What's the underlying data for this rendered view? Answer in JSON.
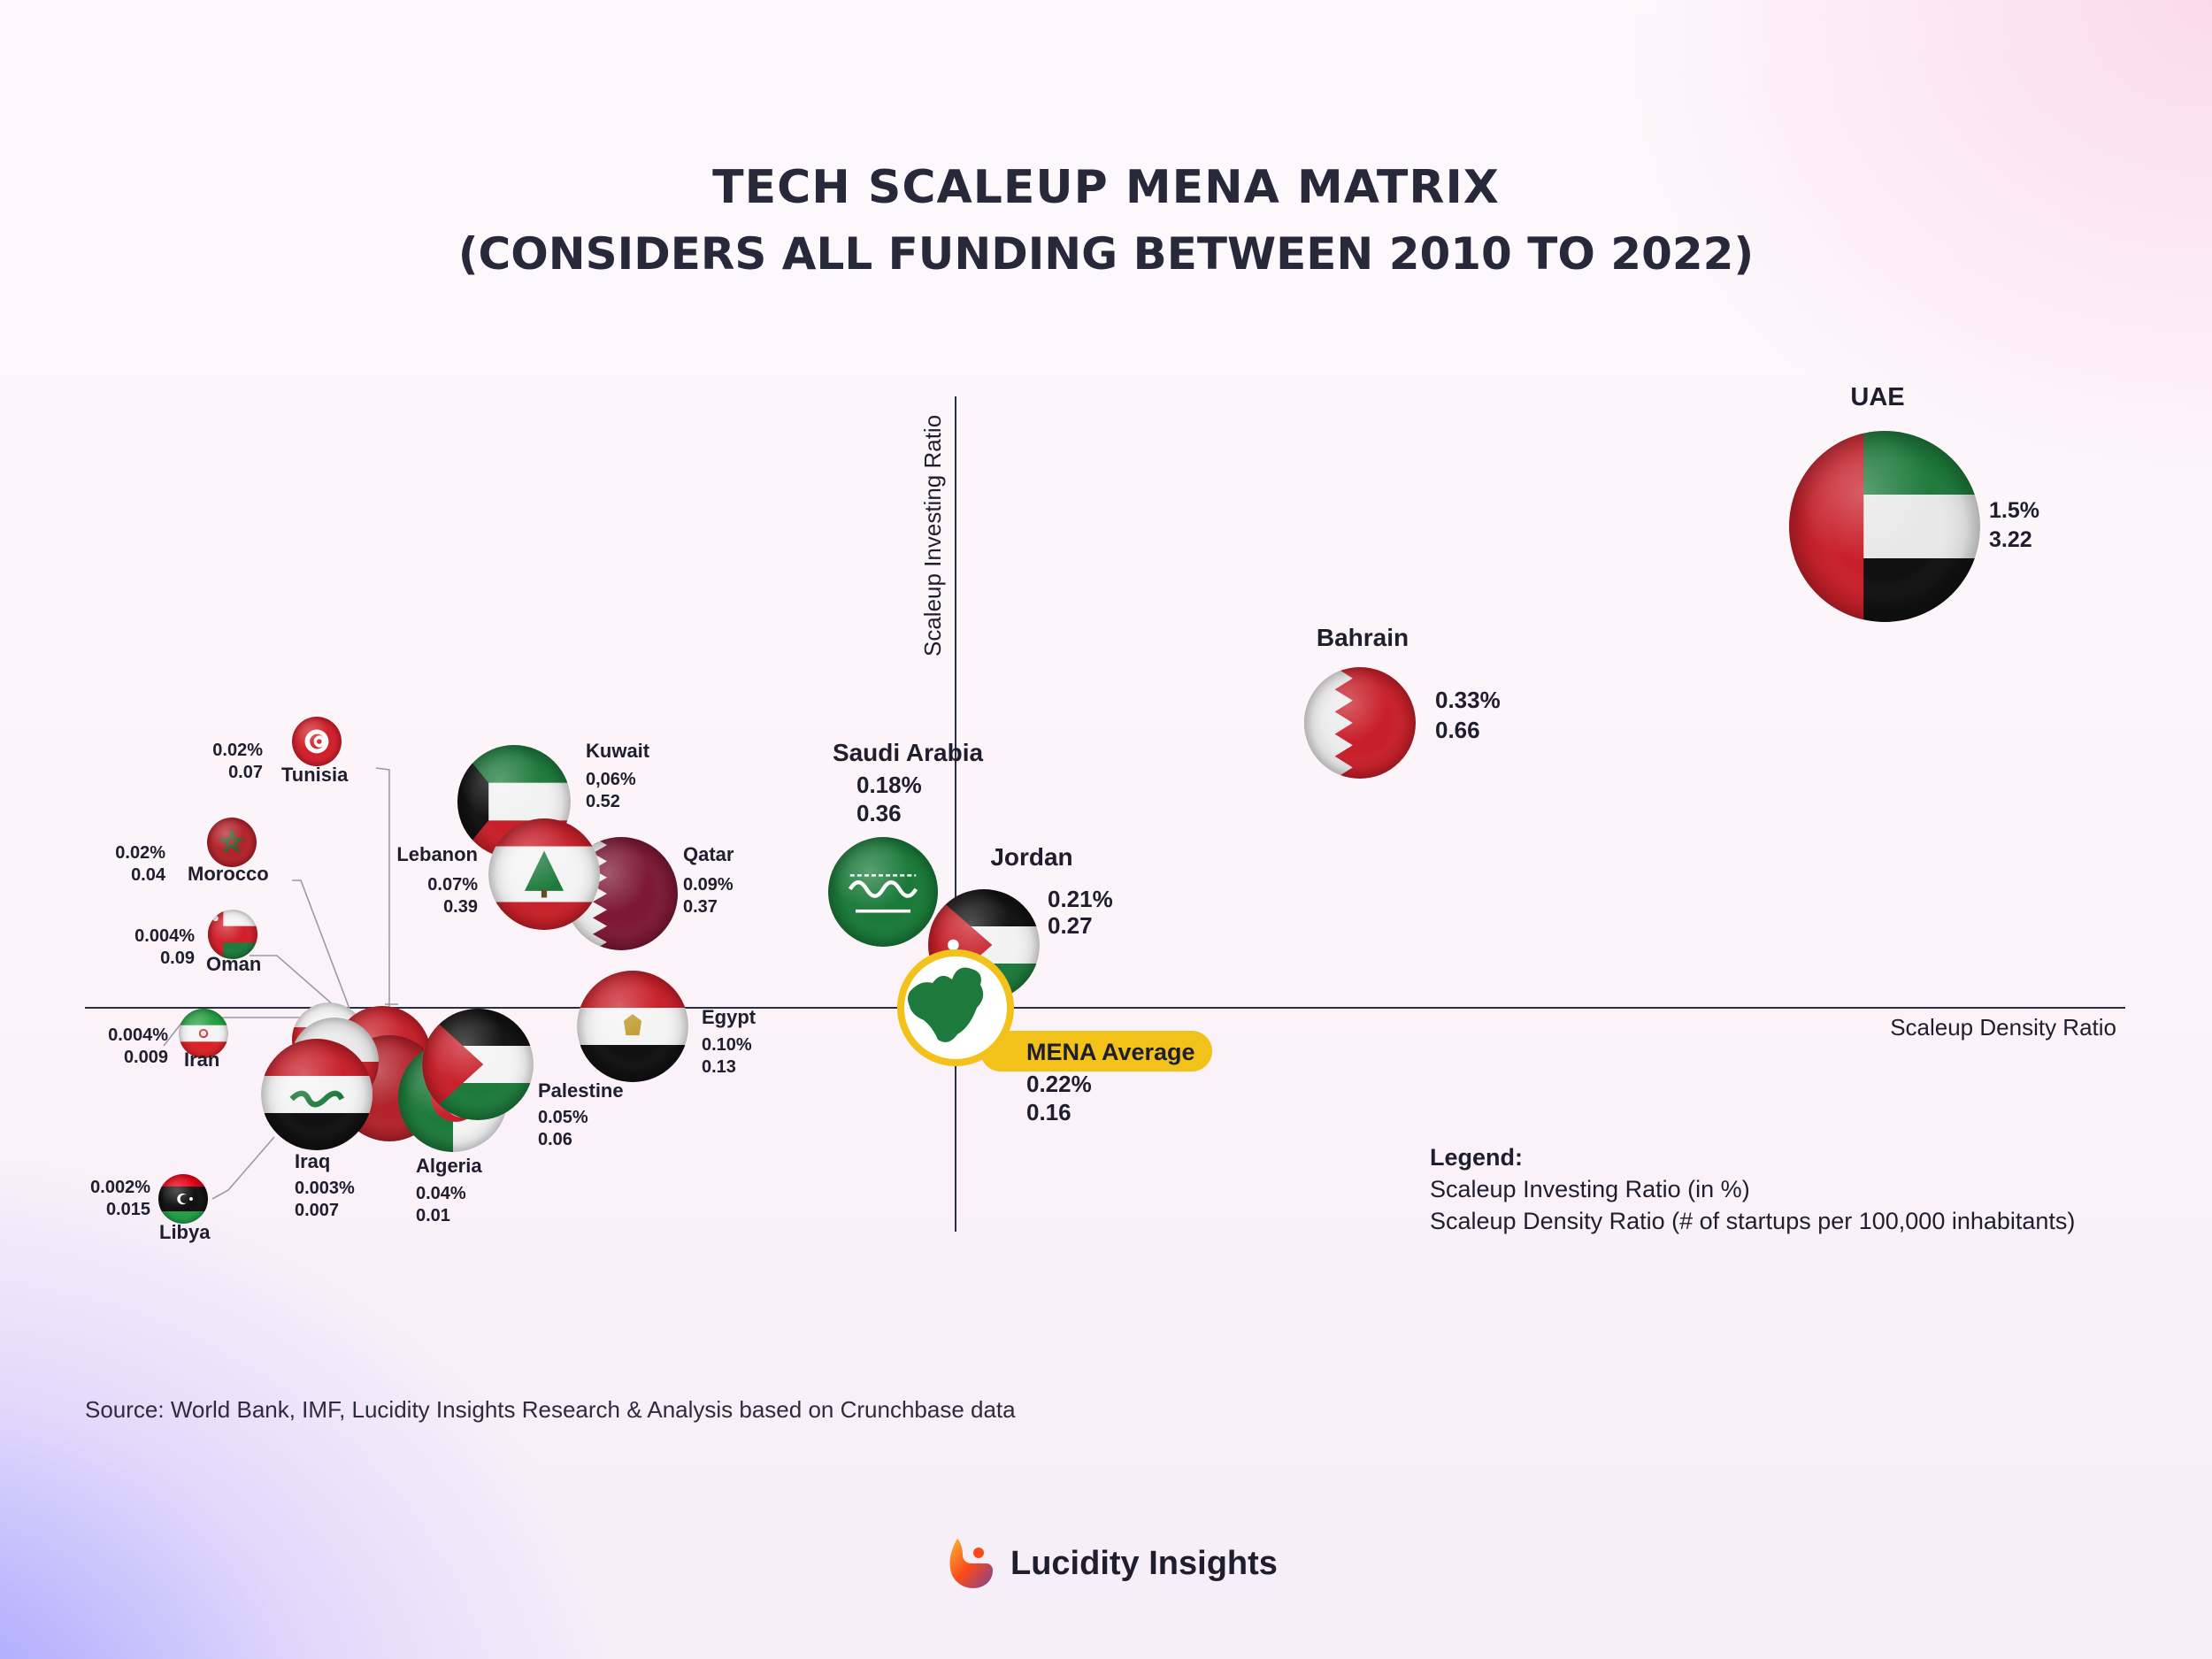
{
  "title": "TECH SCALEUP MENA MATRIX",
  "subtitle": "(CONSIDERS ALL FUNDING BETWEEN 2010 TO 2022)",
  "chart_data": {
    "type": "scatter",
    "title": "TECH SCALEUP MENA MATRIX",
    "subtitle": "(CONSIDERS ALL FUNDING BETWEEN 2010 TO 2022)",
    "xlabel": "Scaleup Density Ratio",
    "ylabel": "Scaleup Investing Ratio",
    "x_unit": "# of startups per 100,000 inhabitants",
    "y_unit": "%",
    "quadrant_origin": "MENA Average",
    "points": [
      {
        "name": "UAE",
        "investing_label": "1.5%",
        "density_label": "3.22",
        "investing": 1.5,
        "density": 3.22
      },
      {
        "name": "Bahrain",
        "investing_label": "0.33%",
        "density_label": "0.66",
        "investing": 0.33,
        "density": 0.66
      },
      {
        "name": "Saudi Arabia",
        "investing_label": "0.18%",
        "density_label": "0.36",
        "investing": 0.18,
        "density": 0.36
      },
      {
        "name": "Jordan",
        "investing_label": "0.21%",
        "density_label": "0.27",
        "investing": 0.21,
        "density": 0.27
      },
      {
        "name": "Kuwait",
        "investing_label": "0,06%",
        "density_label": "0.52",
        "investing": 0.06,
        "density": 0.52
      },
      {
        "name": "Qatar",
        "investing_label": "0.09%",
        "density_label": "0.37",
        "investing": 0.09,
        "density": 0.37
      },
      {
        "name": "Lebanon",
        "investing_label": "0.07%",
        "density_label": "0.39",
        "investing": 0.07,
        "density": 0.39
      },
      {
        "name": "Egypt",
        "investing_label": "0.10%",
        "density_label": "0.13",
        "investing": 0.1,
        "density": 0.13
      },
      {
        "name": "Palestine",
        "investing_label": "0.05%",
        "density_label": "0.06",
        "investing": 0.05,
        "density": 0.06
      },
      {
        "name": "Algeria",
        "investing_label": "0.04%",
        "density_label": "0.01",
        "investing": 0.04,
        "density": 0.01
      },
      {
        "name": "Iraq",
        "investing_label": "0.003%",
        "density_label": "0.007",
        "investing": 0.003,
        "density": 0.007
      },
      {
        "name": "Tunisia",
        "investing_label": "0.02%",
        "density_label": "0.07",
        "investing": 0.02,
        "density": 0.07
      },
      {
        "name": "Morocco",
        "investing_label": "0.02%",
        "density_label": "0.04",
        "investing": 0.02,
        "density": 0.04
      },
      {
        "name": "Oman",
        "investing_label": "0.004%",
        "density_label": "0.09",
        "investing": 0.004,
        "density": 0.09
      },
      {
        "name": "Iran",
        "investing_label": "0.004%",
        "density_label": "0.009",
        "investing": 0.004,
        "density": 0.009
      },
      {
        "name": "Libya",
        "investing_label": "0.002%",
        "density_label": "0.015",
        "investing": 0.002,
        "density": 0.015
      }
    ],
    "average": {
      "name": "MENA Average",
      "investing_label": "0.22%",
      "density_label": "0.16",
      "investing": 0.22,
      "density": 0.16
    }
  },
  "legend": {
    "title": "Legend:",
    "line1": "Scaleup Investing Ratio (in %)",
    "line2": "Scaleup Density Ratio (# of startups per 100,000 inhabitants)"
  },
  "source": "Source: World Bank, IMF, Lucidity Insights Research & Analysis based on Crunchbase data",
  "brand": {
    "name": "Lucidity Insights"
  },
  "colors": {
    "accent": "#f2c21a",
    "text": "#1e1e2e",
    "axis": "#2a2e45",
    "red": "#c8202a",
    "green": "#1e7a3c"
  }
}
